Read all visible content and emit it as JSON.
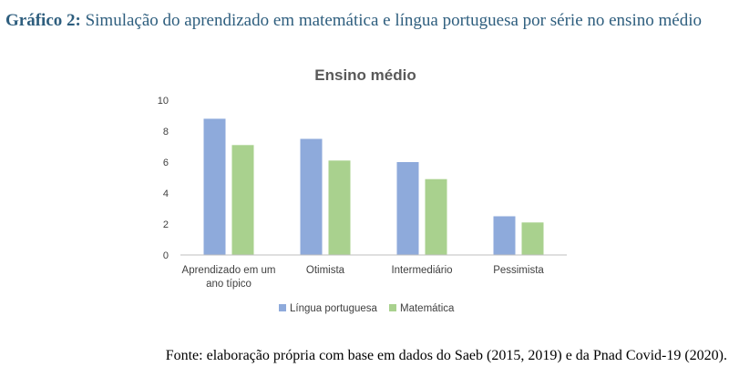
{
  "caption": {
    "lead": "Gráfico 2:",
    "text": " Simulação do aprendizado em matemática e língua portuguesa por série no ensino médio"
  },
  "source": "Fonte: elaboração própria com base em dados do Saeb (2015, 2019) e da Pnad Covid-19 (2020).",
  "colors": {
    "lingua": "#8eaadb",
    "matematica": "#a9d18e",
    "axis": "#bfbfbf"
  },
  "chart_data": {
    "type": "bar",
    "title": "Ensino médio",
    "categories": [
      [
        "Aprendizado em um",
        "ano típico"
      ],
      [
        "Otimista"
      ],
      [
        "Intermediário"
      ],
      [
        "Pessimista"
      ]
    ],
    "series": [
      {
        "name": "Língua portuguesa",
        "values": [
          8.8,
          7.5,
          6.0,
          2.5
        ]
      },
      {
        "name": "Matemática",
        "values": [
          7.1,
          6.1,
          4.9,
          2.1
        ]
      }
    ],
    "yticks": [
      "0",
      "2",
      "4",
      "6",
      "8",
      "10"
    ],
    "ylim": [
      0,
      10
    ],
    "grid": false,
    "legend": "bottom"
  }
}
